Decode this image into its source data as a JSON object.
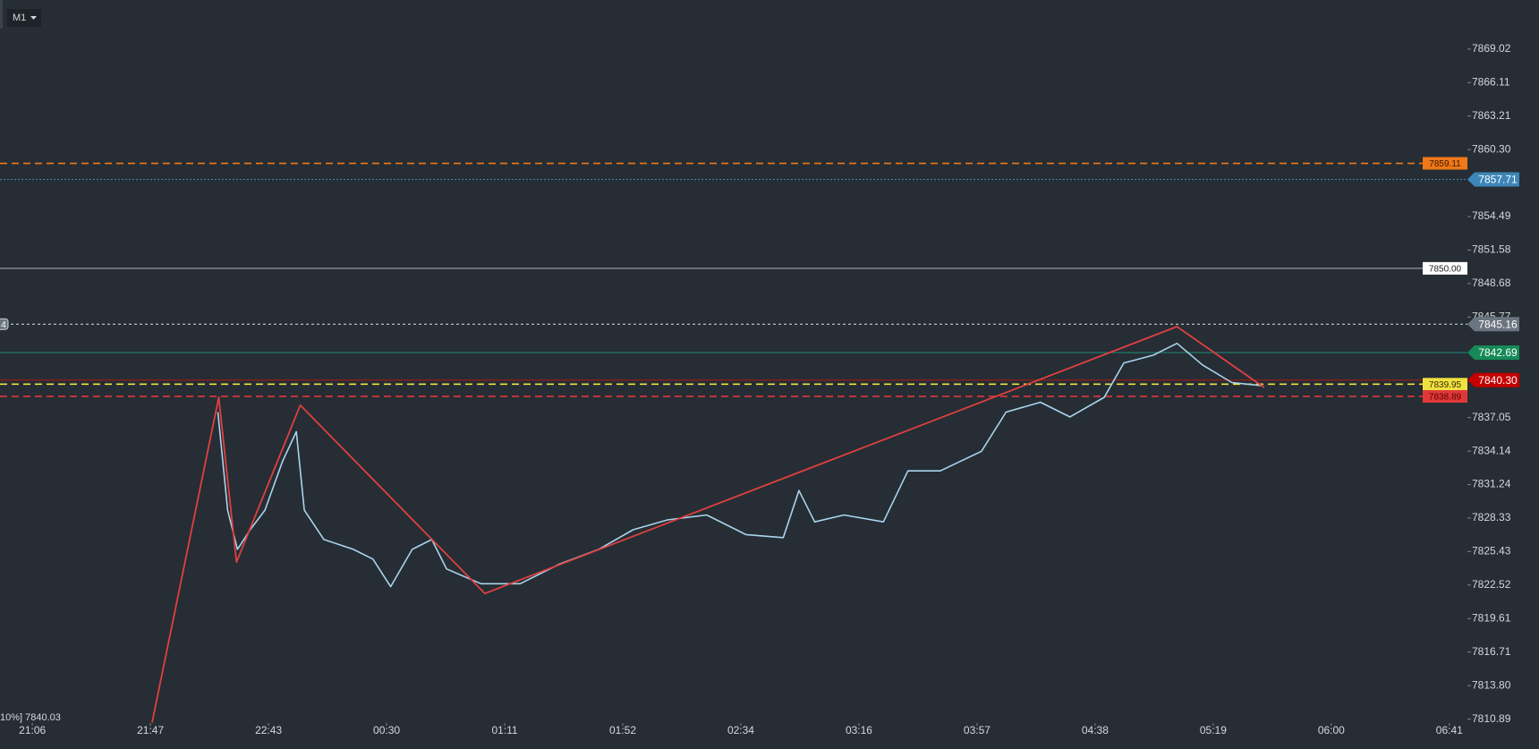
{
  "chart_data": {
    "type": "line",
    "timeframe": "M1",
    "status_text": "10%] 7840.03",
    "xlim": [
      -0.274,
      12.153
    ],
    "ylim": [
      7810.55,
      7873.28
    ],
    "xticks": [
      {
        "value": 0,
        "label": "21:06"
      },
      {
        "value": 1,
        "label": "21:47"
      },
      {
        "value": 2,
        "label": "22:43"
      },
      {
        "value": 3,
        "label": "00:30"
      },
      {
        "value": 4,
        "label": "01:11"
      },
      {
        "value": 5,
        "label": "01:52"
      },
      {
        "value": 6,
        "label": "02:34"
      },
      {
        "value": 7,
        "label": "03:16"
      },
      {
        "value": 8,
        "label": "03:57"
      },
      {
        "value": 9,
        "label": "04:38"
      },
      {
        "value": 10,
        "label": "05:19"
      },
      {
        "value": 11,
        "label": "06:00"
      },
      {
        "value": 12,
        "label": "06:41"
      }
    ],
    "yticks": [
      7869.02,
      7866.11,
      7863.21,
      {
        "value": 7860.3,
        "label": "7860.30"
      },
      7854.49,
      7851.58,
      7848.68,
      7845.77,
      7837.05,
      7834.14,
      7831.24,
      7828.33,
      7825.43,
      7822.52,
      7819.61,
      7816.71,
      {
        "value": 7813.8,
        "label": "7813.80"
      },
      7810.89
    ],
    "price": {
      "color": "#a9d4ec",
      "x": [
        1.571,
        1.654,
        1.737,
        1.845,
        1.97,
        2.12,
        2.236,
        2.303,
        2.469,
        2.718,
        2.884,
        3.034,
        3.217,
        3.383,
        3.508,
        3.799,
        4.131,
        4.464,
        4.796,
        5.087,
        5.378,
        5.711,
        6.043,
        6.359,
        6.492,
        6.625,
        6.874,
        7.207,
        7.415,
        7.689,
        8.038,
        8.246,
        8.537,
        8.786,
        9.077,
        9.243,
        9.493,
        9.693,
        9.909,
        10.158,
        10.407
      ],
      "values": [
        7837.53,
        7829.02,
        7825.62,
        7827.32,
        7829.02,
        7833.28,
        7835.83,
        7829.02,
        7826.47,
        7825.62,
        7824.77,
        7822.38,
        7825.62,
        7826.47,
        7823.92,
        7822.64,
        7822.64,
        7824.34,
        7825.62,
        7827.32,
        7828.17,
        7828.6,
        7826.9,
        7826.64,
        7830.72,
        7828.0,
        7828.6,
        7828.0,
        7832.43,
        7832.43,
        7834.13,
        7837.53,
        7838.38,
        7837.11,
        7838.81,
        7841.79,
        7842.47,
        7843.49,
        7841.62,
        7840.09,
        7839.83
      ]
    },
    "zigzag": {
      "color": "#e04040",
      "x": [
        1.014,
        1.579,
        1.729,
        2.269,
        3.832,
        9.693,
        10.432
      ],
      "values": [
        7810.6,
        7838.81,
        7824.51,
        7838.13,
        7821.79,
        7844.94,
        7839.66
      ]
    },
    "levels": [
      {
        "value": 7859.11,
        "label": "7859.11",
        "color": "#f07818",
        "style": "dashed",
        "tag": "box",
        "text_color": "#3a1a00"
      },
      {
        "value": 7857.71,
        "label": "7857.71",
        "color": "#3d86b8",
        "style": "dotted",
        "tag": "axis",
        "text_color": "#ffffff"
      },
      {
        "value": 7850,
        "label": "7850.00",
        "color": "#b0b4b8",
        "style": "solid",
        "tag": "box",
        "text_color": "#222222",
        "box_color": "#ffffff"
      },
      {
        "value": 7845.16,
        "label": "7845.16",
        "color": "#e0e0e0",
        "style": "dashed-fine",
        "tag": "axis",
        "text_color": "#ffffff",
        "box_color": "#6b7580",
        "left_label": "4"
      },
      {
        "value": 7842.69,
        "label": "7842.69",
        "color": "#1e8c78",
        "style": "solid",
        "tag": "axis",
        "text_color": "#ffffff",
        "box_color": "#158a58"
      },
      {
        "value": 7840.3,
        "label": "7840.30",
        "color": "#b01818",
        "style": "solid",
        "tag": "axis",
        "text_color": "#ffffff",
        "box_color": "#c40000"
      },
      {
        "value": 7839.95,
        "label": "7839.95",
        "color": "#f0e040",
        "style": "dashed",
        "tag": "box",
        "text_color": "#3a3000"
      },
      {
        "value": 7838.89,
        "label": "7838.89",
        "color": "#e03838",
        "style": "dashed",
        "tag": "box",
        "text_color": "#5a0000"
      }
    ]
  }
}
